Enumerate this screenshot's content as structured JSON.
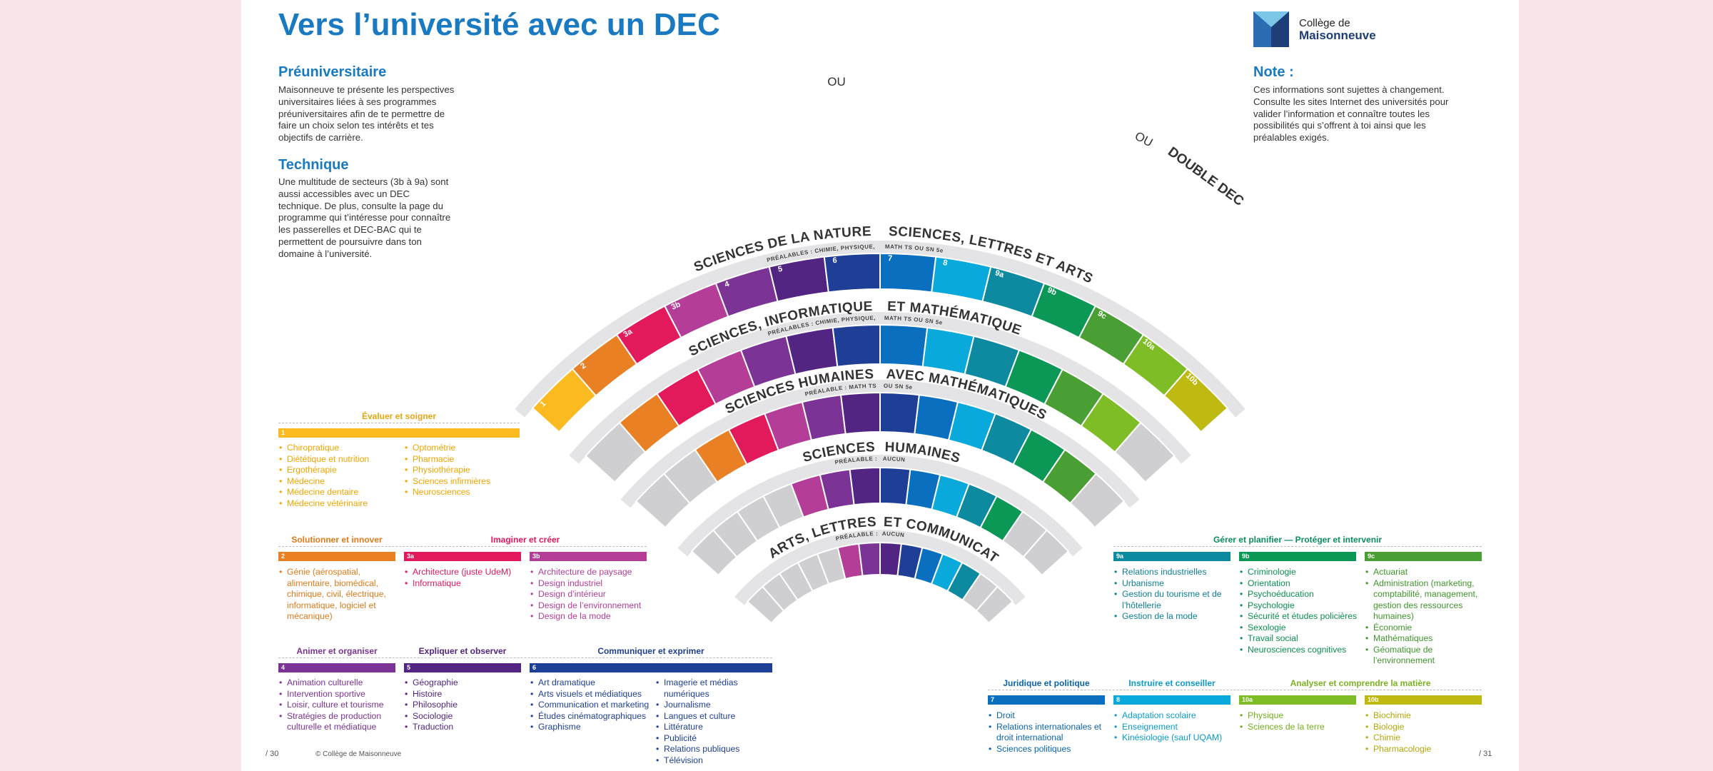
{
  "header": {
    "title": "Vers l’université avec un DEC"
  },
  "logo": {
    "line1": "Collège de",
    "line2": "Maisonneuve"
  },
  "intro": {
    "pre_title": "Préuniversitaire",
    "pre_text": "Maisonneuve te présente les perspectives universitaires liées à ses programmes préuniversitaires afin de te permettre de faire un choix selon tes intérêts et tes objectifs de carrière.",
    "tech_title": "Technique",
    "tech_text": "Une multitude de secteurs (3b à 9a) sont aussi accessibles avec un DEC technique. De plus, consulte la page du programme qui t’intéresse pour connaître les passerelles et DEC-BAC qui te permettent de poursuivre dans ton domaine à l’université."
  },
  "note": {
    "title": "Note :",
    "text": "Ces informations sont sujettes à changement. Consulte les sites Internet des universités pour valider l’information et connaître toutes les possibilités qui s’offrent à toi ainsi que les préalables exigés."
  },
  "colors": {
    "1": "#fbba1f",
    "2": "#e98124",
    "3a": "#e2195a",
    "3b": "#b43e97",
    "4": "#7b3395",
    "5": "#512581",
    "6": "#1f3f96",
    "7": "#0a6fbf",
    "8": "#0aa9dc",
    "9a": "#0d8aa0",
    "9b": "#0b9857",
    "9c": "#4a9f34",
    "10a": "#7ebd26",
    "10b": "#bfba12",
    "gray": "#cfcfd1"
  },
  "arcs": {
    "program_labels": {
      "ring1_left": "SCIENCES DE LA NATURE",
      "ou1": "OU",
      "ring1_right": "SCIENCES, LETTRES ET ARTS",
      "ou2": "OU",
      "double_dec": "DOUBLE DEC",
      "ring2_left": "SCIENCES, INFORMATIQUE",
      "ring2_right": "ET MATHÉMATIQUE",
      "ring3_left": "SCIENCES HUMAINES",
      "ring3_right": "AVEC MATHÉMATIQUES",
      "ring4_left": "SCIENCES",
      "ring4_right": "HUMAINES",
      "ring5_left": "ARTS, LETTRES",
      "ring5_right": "ET COMMUNICATION"
    },
    "prereq_labels": {
      "r1_left": "PRÉALABLES : CHIMIE, PHYSIQUE,",
      "r1_right": "MATH TS OU SN 5e",
      "r2_left": "PRÉALABLES : CHIMIE, PHYSIQUE,",
      "r2_right": "MATH TS OU SN 5e",
      "r3_left": "PRÉALABLE : MATH TS",
      "r3_right": "OU SN 5e",
      "r4_left": "PRÉALABLE :",
      "r4_right": "AUCUN",
      "r5_left": "PRÉALABLE :",
      "r5_right": "AUCUN"
    },
    "outer_numbers": [
      "1",
      "2",
      "3a",
      "3b",
      "4",
      "5",
      "6",
      "7",
      "8",
      "9a",
      "9b",
      "9c",
      "10a",
      "10b"
    ]
  },
  "sectors": {
    "s1": {
      "title": "Évaluer et soigner",
      "code": "1",
      "col1": [
        "Chiropratique",
        "Diététique et nutrition",
        "Ergothérapie",
        "Médecine",
        "Médecine dentaire",
        "Médecine vétérinaire"
      ],
      "col2": [
        "Optométrie",
        "Pharmacie",
        "Physiothérapie",
        "Sciences infirmières",
        "Neurosciences"
      ]
    },
    "s2": {
      "title": "Solutionner et innover",
      "code": "2",
      "items": [
        "Génie (aérospatial, alimentaire, biomédical, chimique, civil, électrique, informatique, logiciel et mécanique)"
      ]
    },
    "imaginer": "Imaginer et créer",
    "s3a": {
      "code": "3a",
      "items": [
        "Architecture (juste UdeM)",
        "Informatique"
      ]
    },
    "s3b": {
      "code": "3b",
      "items": [
        "Architecture de paysage",
        "Design industriel",
        "Design d’intérieur",
        "Design de l’environnement",
        "Design de la mode"
      ]
    },
    "s4": {
      "title": "Animer et organiser",
      "code": "4",
      "items": [
        "Animation culturelle",
        "Intervention sportive",
        "Loisir, culture et tourisme",
        "Stratégies de production culturelle et médiatique"
      ]
    },
    "s5": {
      "title": "Expliquer et observer",
      "code": "5",
      "items": [
        "Géographie",
        "Histoire",
        "Philosophie",
        "Sociologie",
        "Traduction"
      ]
    },
    "s6": {
      "title": "Communiquer et exprimer",
      "code": "6",
      "col1": [
        "Art dramatique",
        "Arts visuels et médiatiques",
        "Communication et marketing",
        "Études cinématographiques",
        "Graphisme"
      ],
      "col2": [
        "Imagerie et médias numériques",
        "Journalisme",
        "Langues et culture",
        "Littérature",
        "Publicité",
        "Relations publiques",
        "Télévision"
      ]
    },
    "gerer": "Gérer et planifier  —  Protéger et intervenir",
    "s9a": {
      "code": "9a",
      "items": [
        "Relations industrielles",
        "Urbanisme",
        "Gestion du tourisme et de l’hôtellerie",
        "Gestion de la mode"
      ]
    },
    "s9b": {
      "code": "9b",
      "items": [
        "Criminologie",
        "Orientation",
        "Psychoéducation",
        "Psychologie",
        "Sécurité et études policières",
        "Sexologie",
        "Travail social",
        "Neurosciences cognitives"
      ]
    },
    "s9c": {
      "code": "9c",
      "items": [
        "Actuariat",
        "Administration (marketing, comptabilité, management, gestion des ressources humaines)",
        "Économie",
        "Mathématiques",
        "Géomatique de l’environnement"
      ]
    },
    "s7": {
      "title": "Juridique et politique",
      "code": "7",
      "items": [
        "Droit",
        "Relations internationales et droit international",
        "Sciences politiques"
      ]
    },
    "s8": {
      "title": "Instruire et conseiller",
      "code": "8",
      "items": [
        "Adaptation scolaire",
        "Enseignement",
        "Kinésiologie (sauf UQAM)"
      ]
    },
    "analyser": "Analyser et comprendre la matière",
    "s10a": {
      "code": "10a",
      "items": [
        "Physique",
        "Sciences de la terre"
      ]
    },
    "s10b": {
      "code": "10b",
      "items": [
        "Biochimie",
        "Biologie",
        "Chimie",
        "Pharmacologie"
      ]
    }
  },
  "footer": {
    "page_left": "/ 30",
    "copyright": "© Collège de Maisonneuve",
    "page_right": "/ 31"
  }
}
